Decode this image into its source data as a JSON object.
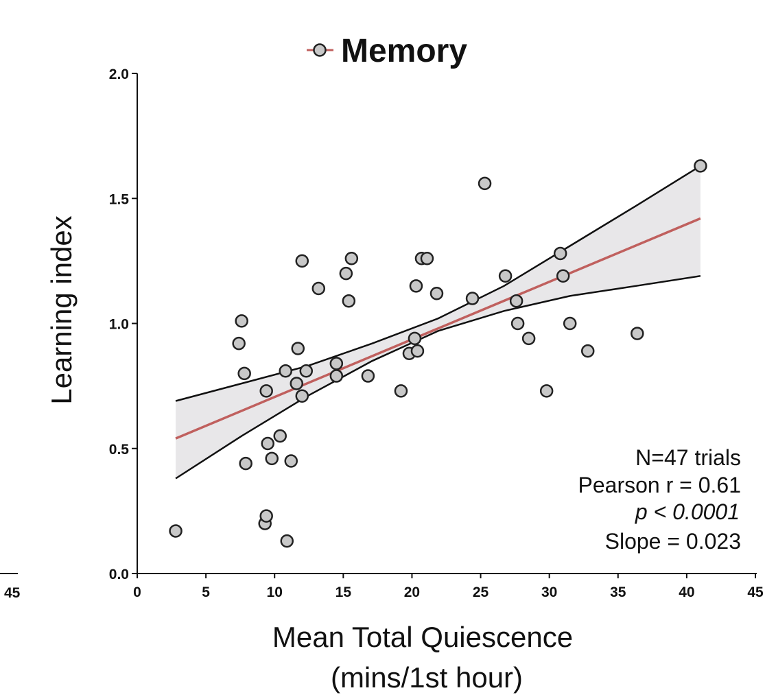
{
  "chart_data": {
    "type": "scatter",
    "title": "",
    "xlabel_line1": "Mean Total Quiescence",
    "xlabel_line2": "(mins/1st hour)",
    "ylabel": "Learning index",
    "xlim": [
      0,
      45
    ],
    "ylim": [
      0,
      2.0
    ],
    "x_ticks": [
      0,
      5,
      10,
      15,
      20,
      25,
      30,
      35,
      40,
      45
    ],
    "x_tick_labels": [
      "0",
      "5",
      "10",
      "15",
      "20",
      "25",
      "30",
      "35",
      "40",
      "45"
    ],
    "x_tick_label_left_panel": "45",
    "y_ticks": [
      0.0,
      0.5,
      1.0,
      1.5,
      2.0
    ],
    "y_tick_labels": [
      "0.0",
      "0.5",
      "1.0",
      "1.5",
      "2.0"
    ],
    "grid": false,
    "legend": {
      "position": "top-center",
      "entries": [
        {
          "label": "Memory",
          "marker": "circle"
        }
      ]
    },
    "series": [
      {
        "name": "Memory",
        "points": [
          [
            2.8,
            0.17
          ],
          [
            7.4,
            0.92
          ],
          [
            7.6,
            1.01
          ],
          [
            7.8,
            0.8
          ],
          [
            7.9,
            0.44
          ],
          [
            9.3,
            0.2
          ],
          [
            9.4,
            0.23
          ],
          [
            9.4,
            0.73
          ],
          [
            9.5,
            0.52
          ],
          [
            9.8,
            0.46
          ],
          [
            10.4,
            0.55
          ],
          [
            10.8,
            0.81
          ],
          [
            10.9,
            0.13
          ],
          [
            11.2,
            0.45
          ],
          [
            11.6,
            0.76
          ],
          [
            11.7,
            0.9
          ],
          [
            12.0,
            0.71
          ],
          [
            12.0,
            1.25
          ],
          [
            12.3,
            0.81
          ],
          [
            13.2,
            1.14
          ],
          [
            14.5,
            0.84
          ],
          [
            14.5,
            0.79
          ],
          [
            15.2,
            1.2
          ],
          [
            15.4,
            1.09
          ],
          [
            15.6,
            1.26
          ],
          [
            16.8,
            0.79
          ],
          [
            19.2,
            0.73
          ],
          [
            19.8,
            0.88
          ],
          [
            20.2,
            0.94
          ],
          [
            20.3,
            1.15
          ],
          [
            20.4,
            0.89
          ],
          [
            20.7,
            1.26
          ],
          [
            21.1,
            1.26
          ],
          [
            21.8,
            1.12
          ],
          [
            24.4,
            1.1
          ],
          [
            25.3,
            1.56
          ],
          [
            26.8,
            1.19
          ],
          [
            27.6,
            1.09
          ],
          [
            27.7,
            1.0
          ],
          [
            28.5,
            0.94
          ],
          [
            29.8,
            0.73
          ],
          [
            30.8,
            1.28
          ],
          [
            31.0,
            1.19
          ],
          [
            31.5,
            1.0
          ],
          [
            32.8,
            0.89
          ],
          [
            36.4,
            0.96
          ],
          [
            41.0,
            1.63
          ]
        ]
      }
    ],
    "regression": {
      "slope": 0.023,
      "x_range": [
        2.8,
        41.0
      ],
      "y_start": 0.54,
      "y_end": 1.42
    },
    "confidence_band": {
      "x": [
        2.8,
        7.6,
        12.4,
        17.1,
        21.9,
        26.7,
        31.5,
        36.3,
        41.0
      ],
      "upper": [
        0.69,
        0.76,
        0.83,
        0.92,
        1.02,
        1.15,
        1.31,
        1.47,
        1.63
      ],
      "lower": [
        0.38,
        0.55,
        0.71,
        0.85,
        0.97,
        1.05,
        1.11,
        1.15,
        1.19
      ]
    },
    "annotations": {
      "n": "N=47 trials",
      "pearson": "Pearson r = 0.61",
      "p": "p < 0.0001",
      "slope": "Slope = 0.023"
    },
    "colors": {
      "regression_line": "#c0605e",
      "band_fill": "#e8e7e9",
      "band_edge": "#111111",
      "marker_fill": "#c8c8c8",
      "marker_edge": "#222222",
      "axis": "#111111"
    }
  }
}
